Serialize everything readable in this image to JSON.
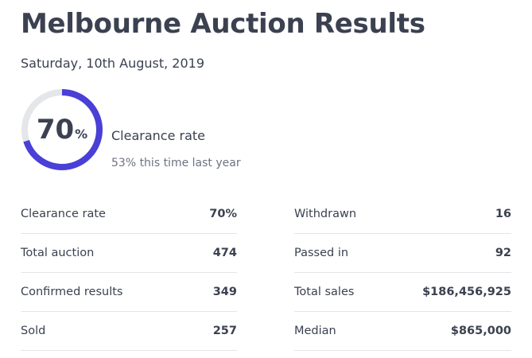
{
  "header": {
    "title": "Melbourne Auction Results",
    "date": "Saturday, 10th August, 2019"
  },
  "gauge": {
    "value": "70",
    "unit": "%",
    "fraction": 0.7,
    "track_color": "#e4e6ea",
    "fill_color": "#4a3fd6",
    "label": "Clearance rate",
    "sublabel": "53% this time last year"
  },
  "stats": {
    "left": [
      {
        "label": "Clearance rate",
        "value": "70%"
      },
      {
        "label": "Total auction",
        "value": "474"
      },
      {
        "label": "Confirmed results",
        "value": "349"
      },
      {
        "label": "Sold",
        "value": "257"
      }
    ],
    "right": [
      {
        "label": "Withdrawn",
        "value": "16"
      },
      {
        "label": "Passed in",
        "value": "92"
      },
      {
        "label": "Total sales",
        "value": "$186,456,925"
      },
      {
        "label": "Median",
        "value": "$865,000"
      }
    ]
  }
}
